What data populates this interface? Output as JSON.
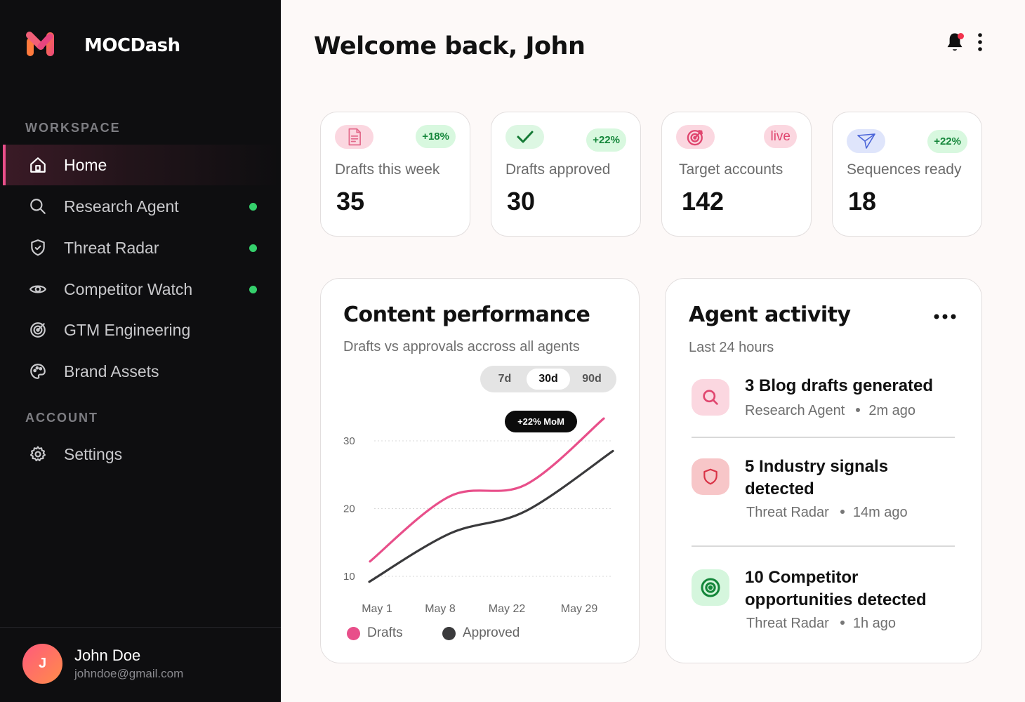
{
  "app": {
    "name": "MOCDash"
  },
  "sidebar": {
    "workspace_label": "WORKSPACE",
    "account_label": "ACCOUNT",
    "items": [
      {
        "label": "Home",
        "icon": "home-icon",
        "active": true,
        "status": ""
      },
      {
        "label": "Research Agent",
        "icon": "search-icon",
        "active": false,
        "status": "online"
      },
      {
        "label": "Threat Radar",
        "icon": "shield-icon",
        "active": false,
        "status": "online"
      },
      {
        "label": "Competitor Watch",
        "icon": "eye-icon",
        "active": false,
        "status": "online"
      },
      {
        "label": "GTM Engineering",
        "icon": "target-icon",
        "active": false,
        "status": ""
      },
      {
        "label": "Brand Assets",
        "icon": "palette-icon",
        "active": false,
        "status": ""
      }
    ],
    "account_items": [
      {
        "label": "Settings",
        "icon": "gear-icon"
      }
    ],
    "user": {
      "initial": "J",
      "name": "John Doe",
      "email": "johndoe@gmail.com"
    }
  },
  "header": {
    "title": "Welcome back, John"
  },
  "stats": [
    {
      "label": "Drafts this week",
      "value": "35",
      "badge": "+18%",
      "icon": "document-icon"
    },
    {
      "label": "Drafts approved",
      "value": "30",
      "badge": "+22%",
      "icon": "check-icon"
    },
    {
      "label": "Target accounts",
      "value": "142",
      "badge": "live",
      "icon": "target-icon"
    },
    {
      "label": "Sequences ready",
      "value": "18",
      "badge": "+22%",
      "icon": "send-icon"
    }
  ],
  "performance": {
    "title": "Content performance",
    "subtitle": "Drafts vs approvals accross all agents",
    "ranges": [
      "7d",
      "30d",
      "90d"
    ],
    "selected_range": "30d",
    "callout": "+22% MoM",
    "legend": [
      "Drafts",
      "Approved"
    ]
  },
  "chart_data": {
    "type": "line",
    "x": [
      "May 1",
      "May 8",
      "May 22",
      "May 29"
    ],
    "yticks": [
      10,
      20,
      30
    ],
    "ylim": [
      10,
      30
    ],
    "grid": true,
    "series": [
      {
        "name": "Drafts",
        "color": "#e84f8a",
        "points": [
          [
            0,
            12.2
          ],
          [
            0.32,
            21.8
          ],
          [
            0.63,
            23.5
          ],
          [
            1.0,
            33.3
          ]
        ]
      },
      {
        "name": "Approved",
        "color": "#3a3a3c",
        "points": [
          [
            0,
            9.2
          ],
          [
            0.32,
            16.3
          ],
          [
            0.63,
            19.6
          ],
          [
            1.0,
            28.5
          ]
        ]
      }
    ]
  },
  "activity": {
    "title": "Agent activity",
    "subtitle": "Last 24 hours",
    "items": [
      {
        "title": "3 Blog drafts generated",
        "agent": "Research Agent",
        "time": "2m ago",
        "icon": "search-icon"
      },
      {
        "title": "5 Industry signals detected",
        "agent": "Threat Radar",
        "time": "14m ago",
        "icon": "shield-icon"
      },
      {
        "title": "10 Competitor opportunities detected",
        "agent": "Threat Radar",
        "time": "1h ago",
        "icon": "target-icon"
      }
    ]
  },
  "colors": {
    "accent": "#e84f8a",
    "online": "#35d06c",
    "sidebar_bg": "#0e0e10"
  }
}
